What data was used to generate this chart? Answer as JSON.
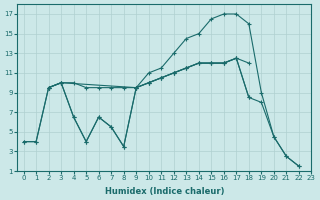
{
  "xlabel": "Humidex (Indice chaleur)",
  "background_color": "#cce8e8",
  "grid_color": "#b0d0d0",
  "line_color": "#1a6b6b",
  "xlim": [
    -0.5,
    23
  ],
  "ylim": [
    1,
    18
  ],
  "xticks": [
    0,
    1,
    2,
    3,
    4,
    5,
    6,
    7,
    8,
    9,
    10,
    11,
    12,
    13,
    14,
    15,
    16,
    17,
    18,
    19,
    20,
    21,
    22,
    23
  ],
  "yticks": [
    1,
    3,
    5,
    7,
    9,
    11,
    13,
    15,
    17
  ],
  "s1x": [
    0,
    1,
    2,
    3,
    4,
    5,
    6,
    7,
    8,
    9,
    10,
    11,
    12,
    13,
    14,
    15,
    16,
    17,
    18,
    19,
    20,
    21,
    22
  ],
  "s1y": [
    4,
    4,
    9.5,
    10,
    6.5,
    4,
    6.5,
    5.5,
    3.5,
    9.5,
    11,
    11.5,
    13,
    14.5,
    15,
    16.5,
    17,
    17,
    16,
    9,
    4.5,
    2.5,
    1.5
  ],
  "s2x": [
    2,
    3,
    4,
    5,
    6,
    7,
    8,
    9,
    10,
    11,
    12,
    13,
    14,
    15,
    16,
    17,
    18
  ],
  "s2y": [
    9.5,
    10,
    10,
    9.5,
    9.5,
    9.5,
    9.5,
    9.5,
    10,
    10.5,
    11,
    11.5,
    12,
    12,
    12,
    12.5,
    12
  ],
  "s3x": [
    0,
    1,
    2,
    3,
    9,
    10,
    11,
    12,
    13,
    14,
    15,
    16,
    17,
    18,
    19,
    20,
    21,
    22
  ],
  "s3y": [
    4,
    4,
    9.5,
    10,
    9.5,
    10,
    10.5,
    11,
    11.5,
    12,
    12,
    12,
    12.5,
    8.5,
    8,
    4.5,
    2.5,
    1.5
  ],
  "s4x": [
    2,
    3,
    4,
    5,
    6,
    7,
    8,
    9,
    10,
    11,
    12,
    13,
    14,
    15,
    16,
    17,
    18
  ],
  "s4y": [
    9.5,
    10,
    6.5,
    4,
    6.5,
    5.5,
    3.5,
    9.5,
    10,
    10.5,
    11,
    11.5,
    12,
    12,
    12,
    12.5,
    8.5
  ]
}
